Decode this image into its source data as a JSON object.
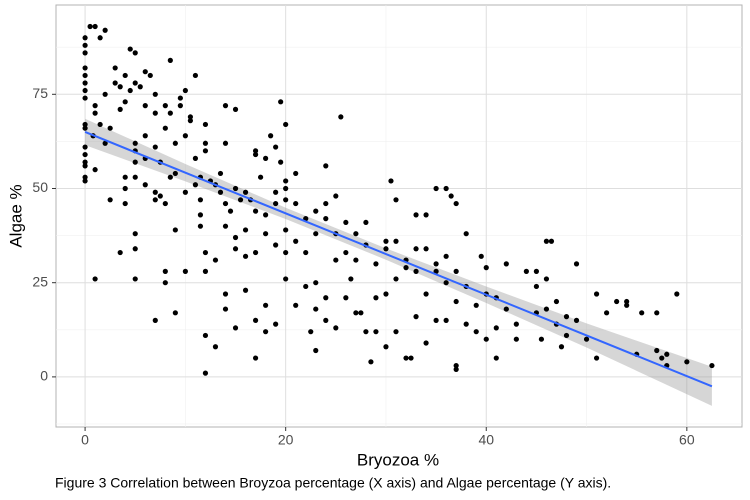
{
  "chart_data": {
    "type": "scatter",
    "xlabel": "Bryozoa %",
    "ylabel": "Algae %",
    "caption": "Figure 3 Correlation between Broyzoa percentage (X axis) and Algae percentage (Y axis).",
    "xlim": [
      -2.9,
      65.5
    ],
    "ylim": [
      -13.3,
      98.7
    ],
    "xticks": [
      0,
      20,
      40,
      60
    ],
    "yticks": [
      0,
      25,
      50,
      75
    ],
    "grid": true,
    "series": [
      {
        "color": "#000000",
        "x": [
          0,
          0,
          0,
          0,
          0,
          0,
          0,
          0,
          0,
          0,
          0,
          0,
          0,
          0,
          0,
          0,
          0.5,
          1,
          1,
          1,
          0.8,
          1,
          1,
          1.5,
          1.5,
          2,
          2,
          2,
          2.5,
          2.5,
          3,
          3,
          3.5,
          3.5,
          3.5,
          4,
          4,
          4,
          4,
          4,
          4.5,
          4.5,
          5,
          5,
          5,
          5,
          5,
          5,
          5,
          5,
          5,
          5.5,
          6,
          6,
          6,
          6,
          6,
          6.5,
          7,
          7,
          7,
          7,
          7,
          7,
          7.5,
          7.5,
          8,
          8,
          8,
          8,
          8,
          8.5,
          8.5,
          8.5,
          9,
          9,
          9,
          9,
          9.5,
          9.5,
          10,
          10,
          10,
          10,
          10.5,
          10.5,
          11,
          11,
          11,
          11.5,
          11.5,
          11.5,
          11.5,
          12,
          12,
          12,
          12,
          12,
          12,
          12,
          12.5,
          13,
          13,
          13,
          13.5,
          13.5,
          14,
          14,
          14,
          14,
          14,
          14,
          14.5,
          15,
          15,
          15,
          15,
          15,
          15.5,
          16,
          16,
          16,
          16,
          16.5,
          17,
          17,
          17,
          17,
          17,
          17,
          17.5,
          18,
          18,
          18,
          18,
          18,
          18.5,
          19,
          19,
          19,
          19,
          19,
          19.5,
          19.5,
          20,
          20,
          20,
          20,
          20,
          20,
          20,
          21,
          21,
          21,
          21,
          22,
          22,
          22,
          22.5,
          23,
          23,
          23,
          23,
          23,
          24,
          24,
          24,
          24,
          24,
          25,
          25,
          25,
          25,
          25.5,
          26,
          26,
          26,
          26.5,
          27,
          27,
          27,
          27.5,
          28,
          28,
          28,
          28.5,
          29,
          29,
          29,
          30,
          30,
          30,
          30,
          30.5,
          31,
          31,
          31,
          31,
          32,
          32,
          32,
          32.5,
          33,
          33,
          33,
          33,
          34,
          34,
          34,
          34,
          35,
          35,
          35,
          35,
          36,
          36,
          36,
          36,
          36.5,
          37,
          37,
          37,
          37,
          37,
          38,
          38,
          38,
          39,
          39,
          39.5,
          40,
          40,
          40,
          41,
          41,
          41,
          42,
          42,
          43,
          43,
          44,
          45,
          45,
          45,
          45.5,
          46,
          46,
          46,
          46.5,
          47,
          47,
          47.5,
          48,
          48,
          49,
          49,
          50,
          51,
          51,
          52,
          53,
          54,
          54,
          55,
          55.5,
          57,
          57,
          57.5,
          58,
          58,
          59,
          60,
          62.5
        ],
        "values": [
          90,
          88,
          86,
          82,
          80,
          78,
          76,
          74,
          67,
          66,
          61,
          59,
          57,
          53,
          52,
          56,
          93,
          93,
          72,
          70,
          64,
          55,
          26,
          90,
          67,
          92,
          75,
          62,
          66,
          47,
          82,
          78,
          77,
          71,
          33,
          80,
          73,
          53,
          50,
          46,
          76,
          87,
          86,
          78,
          62,
          60,
          57,
          53,
          38,
          34,
          26,
          77,
          81,
          72,
          64,
          58,
          51,
          80,
          75,
          70,
          61,
          49,
          47,
          15,
          57,
          48,
          72,
          66,
          46,
          28,
          25,
          84,
          70,
          53,
          62,
          54,
          39,
          17,
          72,
          74,
          76,
          64,
          49,
          28,
          69,
          68,
          80,
          58,
          51,
          53,
          47,
          43,
          40,
          67,
          62,
          60,
          33,
          28,
          11,
          1,
          52,
          51,
          31,
          8,
          54,
          49,
          72,
          62,
          46,
          40,
          22,
          18,
          44,
          71,
          50,
          37,
          34,
          13,
          47,
          49,
          39,
          32,
          23,
          47,
          60,
          59,
          44,
          33,
          15,
          5,
          53,
          58,
          43,
          38,
          19,
          12,
          64,
          61,
          49,
          46,
          35,
          14,
          73,
          57,
          67,
          52,
          50,
          47,
          39,
          33,
          26,
          54,
          46,
          36,
          19,
          42,
          33,
          24,
          12,
          44,
          38,
          25,
          18,
          7,
          56,
          46,
          42,
          21,
          15,
          48,
          38,
          31,
          13,
          69,
          41,
          33,
          21,
          26,
          38,
          31,
          17,
          17,
          41,
          35,
          12,
          4,
          30,
          21,
          12,
          36,
          34,
          22,
          8,
          52,
          47,
          36,
          26,
          12,
          31,
          29,
          5,
          5,
          43,
          34,
          28,
          16,
          43,
          34,
          22,
          9,
          50,
          30,
          28,
          15,
          50,
          32,
          25,
          15,
          48,
          46,
          28,
          20,
          3,
          2,
          38,
          24,
          14,
          19,
          12,
          32,
          29,
          22,
          10,
          21,
          13,
          5,
          30,
          18,
          14,
          10,
          28,
          24,
          17,
          28,
          10,
          36,
          26,
          18,
          36,
          20,
          14,
          8,
          16,
          11,
          30,
          15,
          10,
          22,
          5,
          17,
          20,
          19,
          20,
          6,
          17,
          17,
          7,
          5,
          6,
          3,
          22,
          4,
          3
        ]
      }
    ],
    "fit": {
      "color": "#3366ff",
      "x": [
        0,
        62.5
      ],
      "values": [
        65,
        -2.5
      ]
    },
    "band": {
      "color": "#999999",
      "x": [
        0,
        10,
        20,
        30,
        40,
        50,
        62.5
      ],
      "lower": [
        61.5,
        51.9,
        41.9,
        31.1,
        19.6,
        7.8,
        -7.7
      ],
      "upper": [
        68.5,
        56.5,
        44.9,
        34.1,
        24,
        14.2,
        2.7
      ]
    }
  }
}
